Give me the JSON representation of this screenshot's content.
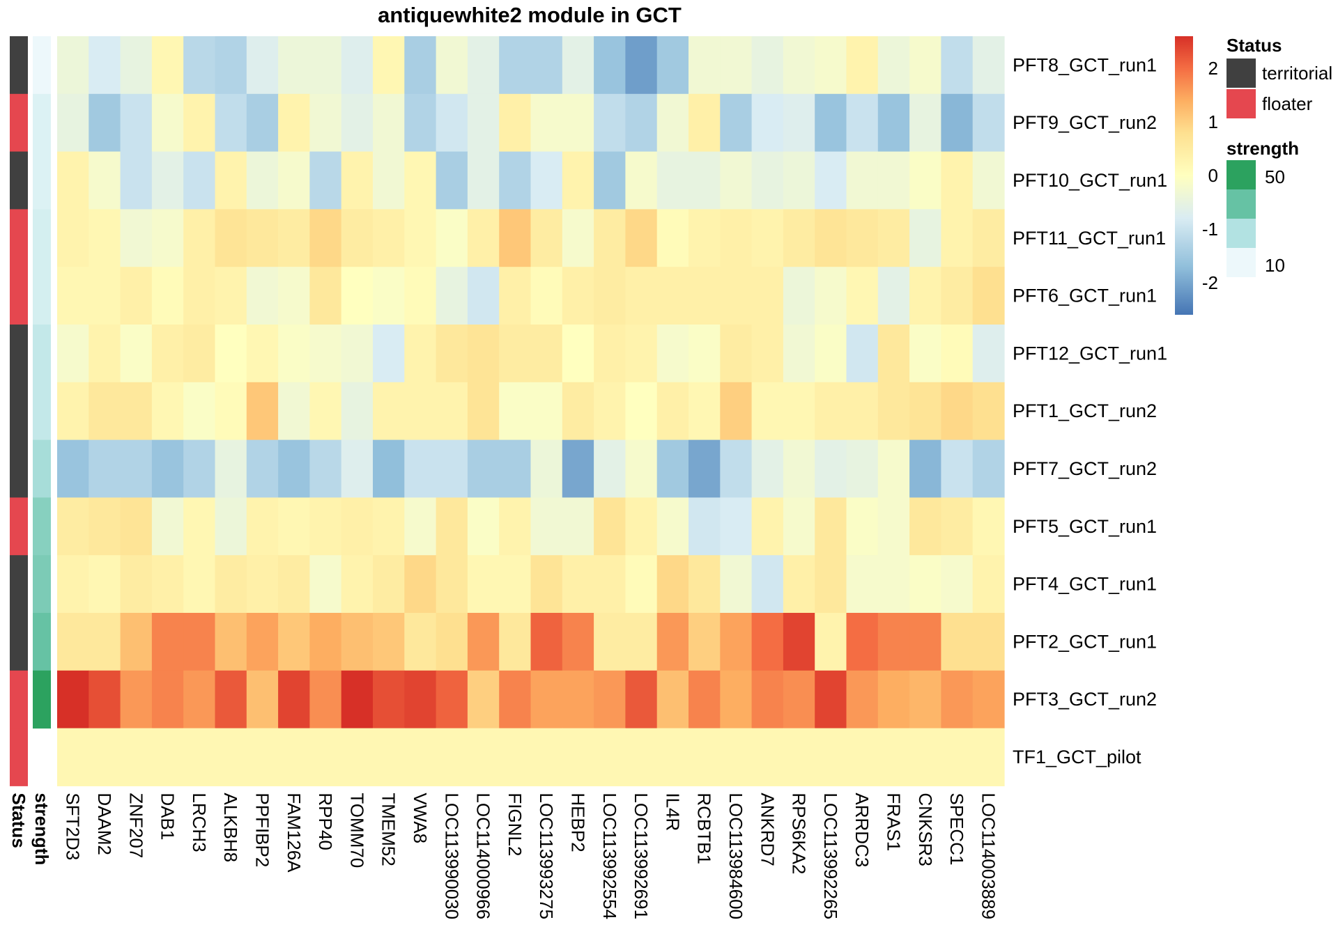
{
  "chart_data": {
    "type": "heatmap",
    "title": "antiquewhite2 module in GCT",
    "columns": [
      "SFT2D3",
      "DAAM2",
      "ZNF207",
      "DAB1",
      "LRCH3",
      "ALKBH8",
      "PPFIBP2",
      "FAM126A",
      "RPP40",
      "TOMM70",
      "TMEM52",
      "VWA8",
      "LOC113990030",
      "LOC114000966",
      "FIGNL2",
      "LOC113993275",
      "HEBP2",
      "LOC113992554",
      "LOC113992691",
      "IL4R",
      "RCBTB1",
      "LOC113984600",
      "ANKRD7",
      "RPS6KA2",
      "LOC113992265",
      "ARRDC3",
      "FRAS1",
      "CNKSR3",
      "SPECC1",
      "LOC114003889"
    ],
    "rows": [
      {
        "name": "PFT8_GCT_run1",
        "status": "territorial",
        "strength": 8,
        "values": [
          -0.4,
          -0.8,
          -0.5,
          0.2,
          -1.2,
          -1.3,
          -0.7,
          -0.4,
          -0.4,
          -0.7,
          0.2,
          -1.4,
          -0.3,
          -0.6,
          -1.3,
          -1.3,
          -0.6,
          -1.6,
          -2.1,
          -1.5,
          -0.3,
          -0.3,
          -0.5,
          -0.3,
          -0.2,
          0.3,
          -0.4,
          -0.2,
          -1.1,
          -0.6
        ]
      },
      {
        "name": "PFT9_GCT_run2",
        "status": "floater",
        "strength": 12,
        "values": [
          -0.5,
          -1.5,
          -1.0,
          -0.2,
          0.3,
          -1.1,
          -1.4,
          0.3,
          -0.3,
          -0.6,
          -0.3,
          -1.3,
          -0.9,
          -0.6,
          0.4,
          -0.2,
          -0.2,
          -1.1,
          -1.3,
          -0.3,
          0.4,
          -1.4,
          -0.8,
          -0.7,
          -1.6,
          -1.0,
          -1.6,
          -0.5,
          -1.8,
          -1.1
        ]
      },
      {
        "name": "PFT10_GCT_run1",
        "status": "territorial",
        "strength": 12,
        "values": [
          0.3,
          -0.2,
          -1.0,
          -0.6,
          -1.0,
          0.3,
          -0.4,
          -0.2,
          -1.2,
          0.3,
          -0.3,
          0.2,
          -1.4,
          -0.6,
          -1.3,
          -0.8,
          0.3,
          -1.5,
          -0.2,
          -0.5,
          -0.5,
          -0.3,
          -0.5,
          -0.4,
          -0.8,
          -0.3,
          -0.3,
          -0.1,
          0.3,
          -0.3
        ]
      },
      {
        "name": "PFT11_GCT_run1",
        "status": "floater",
        "strength": 14,
        "values": [
          0.3,
          0.2,
          -0.3,
          -0.2,
          0.4,
          0.7,
          0.6,
          0.5,
          0.9,
          0.5,
          0.4,
          0.2,
          -0.1,
          0.4,
          1.1,
          0.5,
          -0.2,
          0.5,
          0.9,
          0.1,
          0.3,
          0.4,
          0.3,
          0.5,
          0.7,
          0.6,
          0.5,
          -0.5,
          0.3,
          0.5
        ]
      },
      {
        "name": "PFT6_GCT_run1",
        "status": "floater",
        "strength": 14,
        "values": [
          0.2,
          0.2,
          0.4,
          0.1,
          0.4,
          0.3,
          -0.3,
          -0.2,
          0.6,
          0.0,
          -0.1,
          0.1,
          -0.5,
          -0.9,
          0.4,
          0.1,
          0.4,
          0.5,
          0.4,
          0.4,
          0.4,
          0.4,
          0.4,
          -0.4,
          -0.2,
          0.2,
          -0.6,
          0.3,
          0.5,
          0.8
        ]
      },
      {
        "name": "PFT12_GCT_run1",
        "status": "territorial",
        "strength": 18,
        "values": [
          -0.2,
          0.3,
          -0.1,
          0.4,
          0.5,
          0.0,
          0.2,
          -0.1,
          -0.2,
          -0.3,
          -0.8,
          0.3,
          0.6,
          0.7,
          0.5,
          0.5,
          0.0,
          0.4,
          0.3,
          -0.2,
          -0.1,
          0.5,
          0.4,
          -0.3,
          -0.1,
          -0.9,
          0.6,
          -0.1,
          0.1,
          -0.7
        ]
      },
      {
        "name": "PFT1_GCT_run2",
        "status": "territorial",
        "strength": 18,
        "values": [
          0.3,
          0.6,
          0.6,
          0.2,
          -0.1,
          0.1,
          1.1,
          -0.3,
          0.2,
          -0.5,
          0.3,
          0.3,
          0.3,
          0.7,
          -0.1,
          -0.1,
          0.5,
          0.3,
          0.0,
          0.4,
          0.2,
          1.0,
          0.2,
          0.2,
          0.4,
          0.4,
          0.6,
          0.7,
          0.9,
          0.8
        ]
      },
      {
        "name": "PFT7_GCT_run2",
        "status": "territorial",
        "strength": 24,
        "values": [
          -1.6,
          -1.3,
          -1.3,
          -1.6,
          -1.3,
          -0.5,
          -1.3,
          -1.6,
          -1.2,
          -0.7,
          -1.7,
          -1.0,
          -1.0,
          -1.4,
          -1.4,
          -0.4,
          -2.0,
          -0.6,
          -0.2,
          -1.5,
          -2.0,
          -1.1,
          -0.6,
          -0.3,
          -0.6,
          -0.5,
          -0.2,
          -1.8,
          -1.0,
          -1.3
        ]
      },
      {
        "name": "PFT5_GCT_run1",
        "status": "floater",
        "strength": 30,
        "values": [
          0.5,
          0.6,
          0.7,
          -0.3,
          0.2,
          -0.4,
          0.3,
          0.2,
          0.3,
          0.4,
          0.3,
          -0.2,
          0.6,
          -0.1,
          0.3,
          -0.3,
          -0.3,
          0.7,
          0.3,
          -0.2,
          -0.9,
          -0.8,
          0.3,
          -0.2,
          0.6,
          -0.1,
          -0.2,
          0.6,
          0.5,
          0.2
        ]
      },
      {
        "name": "PFT4_GCT_run1",
        "status": "territorial",
        "strength": 32,
        "values": [
          0.3,
          0.2,
          0.5,
          0.4,
          0.2,
          0.5,
          0.4,
          0.5,
          -0.2,
          0.3,
          0.5,
          0.9,
          0.6,
          0.2,
          0.2,
          0.7,
          0.4,
          0.4,
          0.1,
          0.9,
          0.6,
          -0.3,
          -0.9,
          0.4,
          0.6,
          -0.2,
          -0.2,
          -0.1,
          -0.2,
          0.3
        ]
      },
      {
        "name": "PFT2_GCT_run1",
        "status": "territorial",
        "strength": 36,
        "values": [
          0.6,
          0.6,
          1.2,
          1.8,
          1.8,
          1.2,
          1.5,
          1.1,
          1.4,
          1.2,
          1.1,
          0.6,
          0.8,
          1.6,
          0.6,
          2.1,
          1.8,
          0.5,
          0.5,
          1.6,
          1.0,
          1.5,
          2.0,
          2.4,
          0.3,
          2.0,
          1.8,
          1.8,
          0.8,
          0.8
        ]
      },
      {
        "name": "PFT3_GCT_run2",
        "status": "floater",
        "strength": 50,
        "values": [
          2.6,
          2.3,
          1.6,
          1.8,
          1.6,
          2.2,
          1.2,
          2.4,
          1.7,
          2.7,
          2.3,
          2.4,
          2.1,
          1.0,
          1.8,
          1.5,
          1.5,
          1.6,
          2.2,
          1.2,
          1.8,
          1.4,
          1.8,
          1.7,
          2.4,
          1.6,
          1.4,
          1.3,
          1.6,
          1.5
        ]
      },
      {
        "name": "TF1_GCT_pilot",
        "status": "floater",
        "strength": null,
        "values": [
          0.2,
          0.2,
          0.2,
          0.2,
          0.2,
          0.2,
          0.2,
          0.2,
          0.2,
          0.2,
          0.2,
          0.2,
          0.2,
          0.2,
          0.2,
          0.2,
          0.2,
          0.2,
          0.2,
          0.2,
          0.2,
          0.2,
          0.2,
          0.2,
          0.2,
          0.2,
          0.2,
          0.2,
          0.2,
          0.2
        ]
      }
    ],
    "annotation_labels": [
      "Status",
      "strength"
    ],
    "color_scale": {
      "range": [
        -2.6,
        2.6
      ],
      "ticks": [
        2,
        1,
        0,
        -1,
        -2
      ],
      "stops": [
        {
          "v": -2.6,
          "c": "#4575b4"
        },
        {
          "v": -1.7,
          "c": "#91bfdb"
        },
        {
          "v": -0.8,
          "c": "#d9ecf3"
        },
        {
          "v": 0.0,
          "c": "#ffffbf"
        },
        {
          "v": 0.8,
          "c": "#fee090"
        },
        {
          "v": 1.4,
          "c": "#fdae61"
        },
        {
          "v": 2.0,
          "c": "#f46d43"
        },
        {
          "v": 2.6,
          "c": "#d73027"
        }
      ]
    },
    "legends": {
      "status": {
        "title": "Status",
        "items": [
          {
            "label": "territorial",
            "color": "#404040"
          },
          {
            "label": "floater",
            "color": "#e5474f"
          }
        ]
      },
      "strength": {
        "title": "strength",
        "ticks": [
          "50",
          "10"
        ],
        "swatches": [
          "#2ca25f",
          "#66c2a4",
          "#b2e2e2",
          "#edf8fb"
        ],
        "range": [
          8,
          50
        ]
      }
    }
  }
}
